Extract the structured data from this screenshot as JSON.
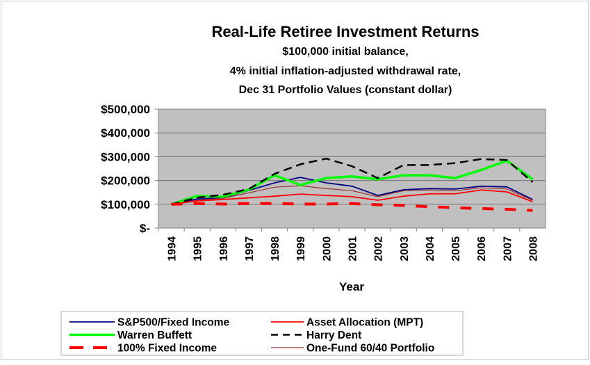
{
  "chart_data": {
    "type": "line",
    "title": "Real-Life Retiree Investment Returns",
    "subtitle": [
      "$100,000 initial balance,",
      "4% initial inflation-adjusted withdrawal rate,",
      "Dec 31 Portfolio Values (constant dollar)"
    ],
    "xlabel": "Year",
    "ylabel": "",
    "ylim": [
      0,
      500000
    ],
    "yticks": [
      0,
      100000,
      200000,
      300000,
      400000,
      500000
    ],
    "ytick_labels": [
      "$-",
      "$100,000",
      "$200,000",
      "$300,000",
      "$400,000",
      "$500,000"
    ],
    "grid": true,
    "plot_background": "#c0c0c0",
    "legend_position": "bottom",
    "categories": [
      "1994",
      "1995",
      "1996",
      "1997",
      "1998",
      "1999",
      "2000",
      "2001",
      "2002",
      "2003",
      "2004",
      "2005",
      "2006",
      "2007",
      "2008"
    ],
    "series": [
      {
        "name": "S&P500/Fixed Income",
        "color": "#000080",
        "style": "solid",
        "values": [
          100000,
          122000,
          128000,
          158000,
          190000,
          213000,
          190000,
          176000,
          137000,
          161000,
          166000,
          164000,
          176000,
          173000,
          120000
        ]
      },
      {
        "name": "Asset Allocation (MPT)",
        "color": "#ff0000",
        "style": "solid",
        "values": [
          100000,
          114000,
          120000,
          127000,
          134000,
          143000,
          137000,
          132000,
          117000,
          134000,
          144000,
          144000,
          160000,
          152000,
          111000
        ]
      },
      {
        "name": "Warren Buffett",
        "color": "#00ff00",
        "style": "thick",
        "values": [
          100000,
          135000,
          132000,
          161000,
          222000,
          181000,
          210000,
          217000,
          205000,
          222000,
          222000,
          210000,
          244000,
          283000,
          205000
        ]
      },
      {
        "name": "Harry Dent",
        "color": "#000000",
        "style": "dashed",
        "values": [
          100000,
          128000,
          140000,
          164000,
          228000,
          268000,
          292000,
          260000,
          210000,
          265000,
          265000,
          273000,
          290000,
          286000,
          193000
        ]
      },
      {
        "name": "100% Fixed Income",
        "color": "#ff0000",
        "style": "thick-dashed",
        "values": [
          100000,
          103000,
          101000,
          103000,
          103000,
          101000,
          101000,
          103000,
          98000,
          95000,
          90000,
          85000,
          82000,
          79000,
          74000
        ]
      },
      {
        "name": "One-Fund 60/40 Portfolio",
        "color": "#993333",
        "style": "thin",
        "values": [
          100000,
          117000,
          125000,
          148000,
          172000,
          178000,
          166000,
          157000,
          132000,
          157000,
          160000,
          157000,
          169000,
          164000,
          117000
        ]
      }
    ]
  }
}
